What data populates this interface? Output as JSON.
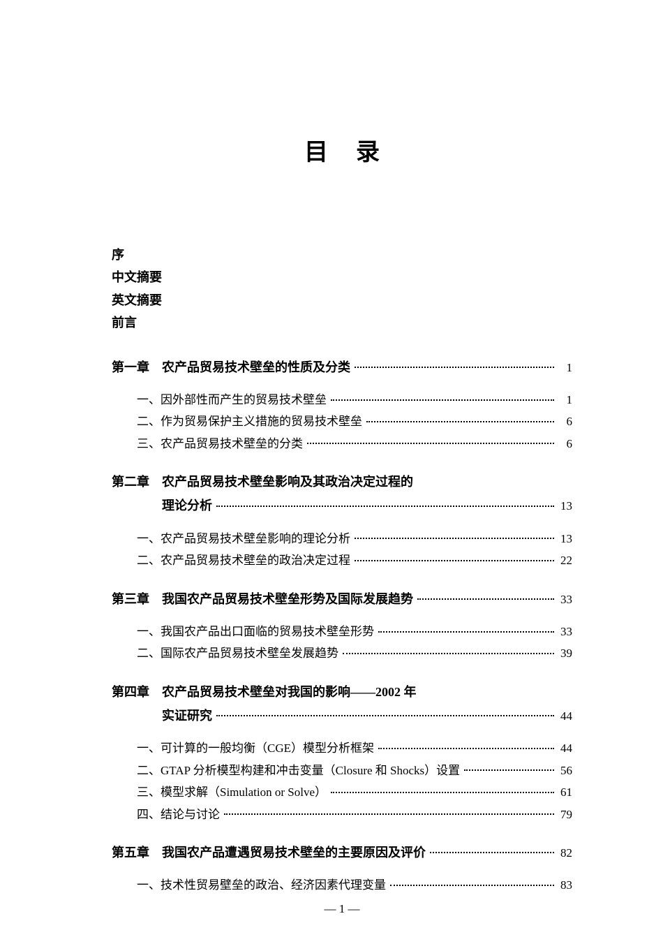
{
  "title": "目录",
  "front_matter": [
    "序",
    "中文摘要",
    "英文摘要",
    "前言"
  ],
  "chapters": [
    {
      "label": "第一章",
      "title": "农产品贸易技术壁垒的性质及分类",
      "page": "1",
      "sections": [
        {
          "label": "一、",
          "title": "因外部性而产生的贸易技术壁垒",
          "page": "1"
        },
        {
          "label": "二、",
          "title": "作为贸易保护主义措施的贸易技术壁垒",
          "page": "6"
        },
        {
          "label": "三、",
          "title": "农产品贸易技术壁垒的分类",
          "page": "6"
        }
      ]
    },
    {
      "label": "第二章",
      "title": "农产品贸易技术壁垒影响及其政治决定过程的",
      "title_cont": "理论分析",
      "page": "13",
      "sections": [
        {
          "label": "一、",
          "title": "农产品贸易技术壁垒影响的理论分析",
          "page": "13"
        },
        {
          "label": "二、",
          "title": "农产品贸易技术壁垒的政治决定过程",
          "page": "22"
        }
      ]
    },
    {
      "label": "第三章",
      "title": "我国农产品贸易技术壁垒形势及国际发展趋势",
      "page": "33",
      "sections": [
        {
          "label": "一、",
          "title": "我国农产品出口面临的贸易技术壁垒形势",
          "page": "33"
        },
        {
          "label": "二、",
          "title": "国际农产品贸易技术壁垒发展趋势",
          "page": "39"
        }
      ]
    },
    {
      "label": "第四章",
      "title": "农产品贸易技术壁垒对我国的影响——2002 年",
      "title_cont": "实证研究",
      "page": "44",
      "sections": [
        {
          "label": "一、",
          "title": "可计算的一般均衡（CGE）模型分析框架",
          "page": "44"
        },
        {
          "label": "二、",
          "title": "GTAP 分析模型构建和冲击变量（Closure 和 Shocks）设置",
          "page": "56"
        },
        {
          "label": "三、",
          "title": "模型求解（Simulation or Solve）",
          "page": "61"
        },
        {
          "label": "四、",
          "title": "结论与讨论",
          "page": "79"
        }
      ]
    },
    {
      "label": "第五章",
      "title": "我国农产品遭遇贸易技术壁垒的主要原因及评价",
      "page": "82",
      "sections": [
        {
          "label": "一、",
          "title": "技术性贸易壁垒的政治、经济因素代理变量",
          "page": "83"
        }
      ]
    }
  ],
  "footer": "— 1 —"
}
